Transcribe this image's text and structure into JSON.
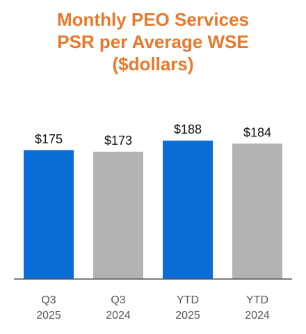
{
  "chart_data": {
    "type": "bar",
    "title_lines": [
      "Monthly PEO Services",
      "PSR per Average WSE",
      "($dollars)"
    ],
    "categories": [
      [
        "Q3",
        "2025"
      ],
      [
        "Q3",
        "2024"
      ],
      [
        "YTD",
        "2025"
      ],
      [
        "YTD",
        "2024"
      ]
    ],
    "values": [
      175,
      173,
      188,
      184
    ],
    "value_labels": [
      "$175",
      "$173",
      "$188",
      "$184"
    ],
    "bar_colors": [
      "#0a6ed6",
      "#b3b3b3",
      "#0a6ed6",
      "#b3b3b3"
    ],
    "title_color": "#e8782b",
    "ylim": [
      0,
      190
    ],
    "grid": false,
    "legend": "none"
  }
}
